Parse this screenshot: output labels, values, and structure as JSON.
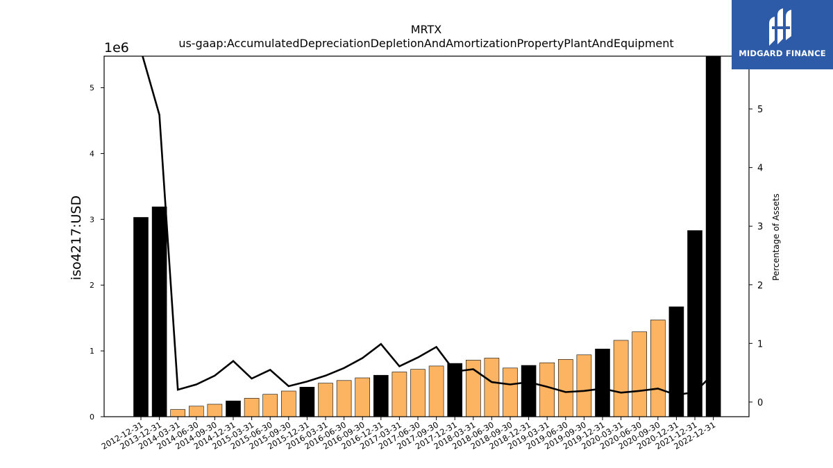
{
  "chart_data": {
    "type": "bar",
    "title": "MRTX",
    "subtitle": "us-gaap:AccumulatedDepreciationDepletionAndAmortizationPropertyPlantAndEquipment",
    "ylabel": "iso4217:USD",
    "y_offset_label": "1e6",
    "y2label": "Percentage of Assets",
    "ylim": [
      0,
      5.48
    ],
    "y2lim": [
      -0.25,
      5.9
    ],
    "yticks": [
      "0",
      "1",
      "2",
      "3",
      "4",
      "5"
    ],
    "y2ticks": [
      "0",
      "1",
      "2",
      "3",
      "4",
      "5"
    ],
    "categories": [
      "2012-12-31",
      "2013-12-31",
      "2014-03-31",
      "2014-06-30",
      "2014-09-30",
      "2014-12-31",
      "2015-03-31",
      "2015-06-30",
      "2015-09-30",
      "2015-12-31",
      "2016-03-31",
      "2016-06-30",
      "2016-09-30",
      "2016-12-31",
      "2017-03-31",
      "2017-06-30",
      "2017-09-30",
      "2017-12-31",
      "2018-03-31",
      "2018-06-30",
      "2018-09-30",
      "2018-12-31",
      "2019-03-31",
      "2019-06-30",
      "2019-09-30",
      "2019-12-31",
      "2020-03-31",
      "2020-06-30",
      "2020-09-30",
      "2020-12-31",
      "2021-12-31",
      "2022-12-31"
    ],
    "series": [
      {
        "type": "bar",
        "values": [
          3.03,
          3.19,
          0.11,
          0.16,
          0.19,
          0.24,
          0.28,
          0.34,
          0.39,
          0.45,
          0.51,
          0.55,
          0.59,
          0.63,
          0.68,
          0.72,
          0.77,
          0.81,
          0.86,
          0.89,
          0.74,
          0.78,
          0.82,
          0.87,
          0.94,
          1.03,
          1.16,
          1.29,
          1.47,
          1.67,
          2.83,
          5.48
        ],
        "annual": [
          true,
          true,
          false,
          false,
          false,
          true,
          false,
          false,
          false,
          true,
          false,
          false,
          false,
          true,
          false,
          false,
          false,
          true,
          false,
          false,
          false,
          true,
          false,
          false,
          false,
          true,
          false,
          false,
          false,
          true,
          true,
          true
        ]
      },
      {
        "type": "line",
        "axis": "right",
        "values": [
          6.0,
          4.9,
          0.21,
          0.3,
          0.45,
          0.7,
          0.4,
          0.55,
          0.27,
          0.35,
          0.45,
          0.58,
          0.75,
          0.99,
          0.61,
          0.76,
          0.94,
          0.52,
          0.56,
          0.34,
          0.3,
          0.34,
          0.26,
          0.17,
          0.19,
          0.23,
          0.16,
          0.19,
          0.23,
          0.12,
          0.17,
          0.48
        ]
      }
    ],
    "colors": {
      "annual": "#000000",
      "quarterly": "#fdb462",
      "line": "#000000"
    }
  },
  "logo": {
    "text": "MIDGARD FINANCE"
  }
}
